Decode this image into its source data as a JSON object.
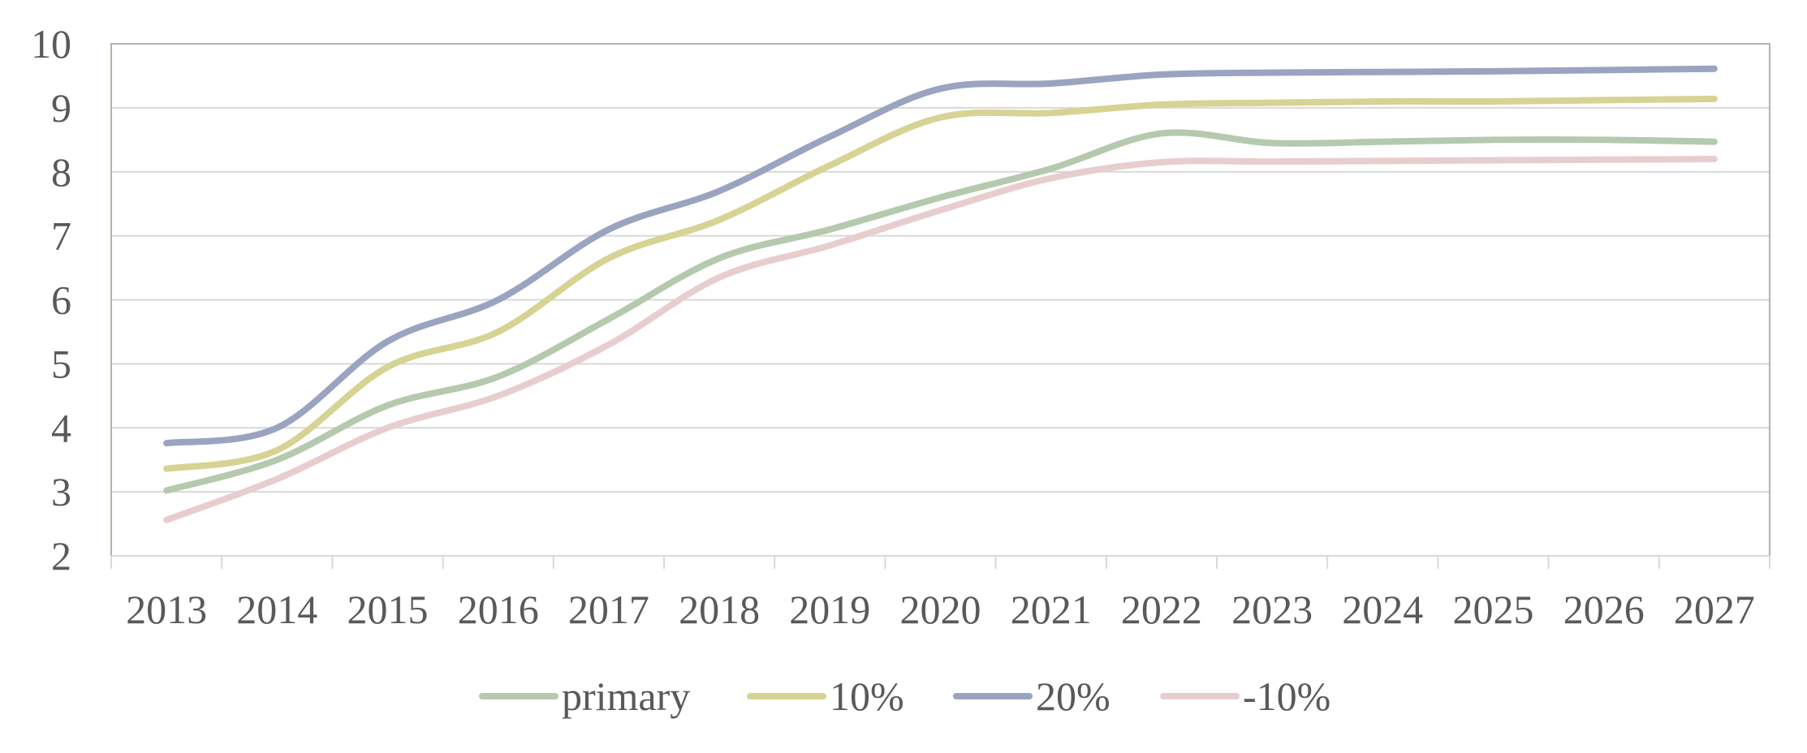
{
  "chart_data": {
    "type": "line",
    "title": "",
    "xlabel": "",
    "ylabel": "",
    "categories": [
      "2013",
      "2014",
      "2015",
      "2016",
      "2017",
      "2018",
      "2019",
      "2020",
      "2021",
      "2022",
      "2023",
      "2024",
      "2025",
      "2026",
      "2027"
    ],
    "ylim": [
      2,
      10
    ],
    "yticks": [
      "2",
      "3",
      "4",
      "5",
      "6",
      "7",
      "8",
      "9",
      "10"
    ],
    "grid": true,
    "legend_position": "bottom",
    "series": [
      {
        "name": "primary",
        "color": "#b5c9ae",
        "values": [
          3.02,
          3.5,
          4.35,
          4.8,
          5.7,
          6.65,
          7.1,
          7.6,
          8.05,
          8.6,
          8.45,
          8.47,
          8.5,
          8.5,
          8.47
        ]
      },
      {
        "name": "10%",
        "color": "#d6d394",
        "values": [
          3.36,
          3.65,
          4.95,
          5.5,
          6.65,
          7.25,
          8.1,
          8.85,
          8.92,
          9.05,
          9.08,
          9.1,
          9.1,
          9.12,
          9.14
        ]
      },
      {
        "name": "20%",
        "color": "#9aa4c0",
        "values": [
          3.76,
          4.0,
          5.35,
          6.0,
          7.1,
          7.7,
          8.55,
          9.3,
          9.38,
          9.52,
          9.55,
          9.56,
          9.57,
          9.59,
          9.61
        ]
      },
      {
        "name": "-10%",
        "color": "#e8cdcf",
        "values": [
          2.56,
          3.2,
          4.0,
          4.5,
          5.3,
          6.35,
          6.85,
          7.4,
          7.9,
          8.15,
          8.16,
          8.17,
          8.18,
          8.19,
          8.2
        ]
      }
    ]
  }
}
